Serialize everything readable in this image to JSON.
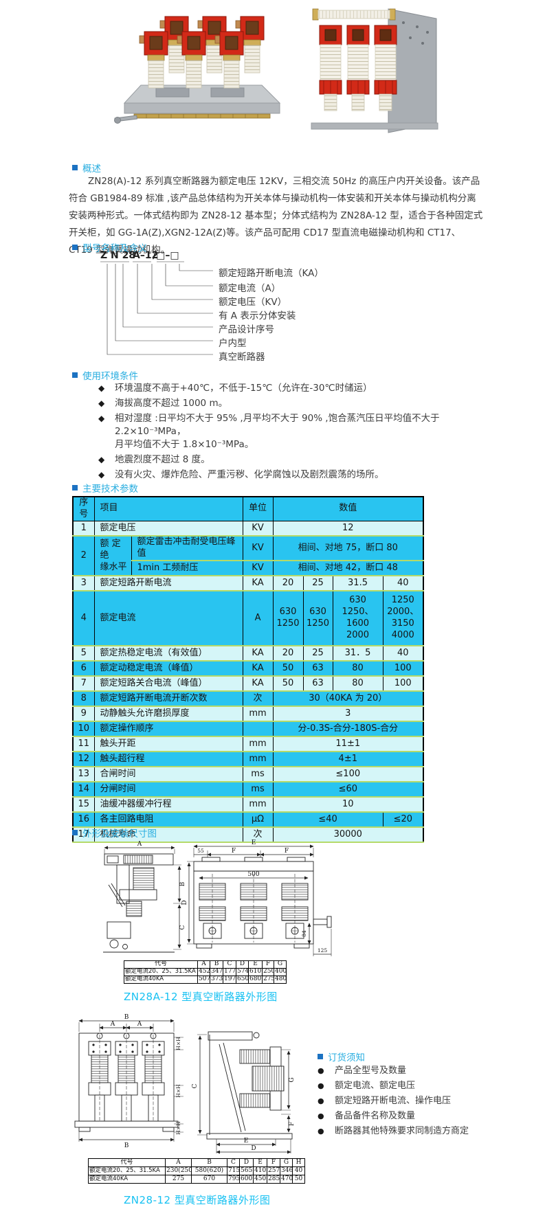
{
  "colors": {
    "section_title": "#2aaee0",
    "bullet_square": "#1c72c2",
    "caption": "#17c1f2",
    "table_bright": "#29c4f0",
    "table_pale": "#d5f6f8",
    "row_separator": "#b5da69",
    "text": "#3c3c3c"
  },
  "overview": {
    "title": "概述",
    "paragraph": "ZN28(A)-12 系列真空断路器为额定电压 12KV，三相交流 50Hz 的高压户内开关设备。该产品符合 GB1984-89 标准 ,该产品总体结构为开关本体与操动机构一体安装和开关本体与操动机构分离安装两种形式。一体式结构即为 ZN28-12 基本型；分体式结构为 ZN28A-12 型，适合于各种固定式开关柜，如 GG-1A(Z),XGN2-12A(Z)等。该产品可配用 CD17 型直流电磁操动机构和 CT17、CT19 型弹簧操动机构。"
  },
  "model": {
    "title": "型号名称及含义",
    "code_parts": [
      "Z N 28",
      "A–12",
      "/□–□"
    ],
    "labels": [
      "额定短路开断电流（KA）",
      "额定电流（A）",
      "额定电压（KV）",
      "有 A 表示分体安装",
      "产品设计序号",
      "户内型",
      "真空断路器"
    ]
  },
  "environment": {
    "title": "使用环境条件",
    "bullet": "◆",
    "items": [
      "环境温度不高于+40℃，不低于-15℃（允许在-30℃时储运）",
      "海拔高度不超过 1000 m。",
      "相对湿度 :日平均不大于 95% ,月平均不大于 90% ,饱合蒸汽压日平均值不大于 2.2×10⁻³MPa，\n月平均值不大于 1.8×10⁻³MPa。",
      "地震烈度不超过 8 度。",
      "没有火灾、爆炸危险、严重污秽、化学腐蚀以及剧烈震荡的场所。"
    ]
  },
  "spec_table": {
    "title": "主要技术参数",
    "rows": [
      {
        "bg": "b",
        "hd": true,
        "cells": [
          [
            "序号"
          ],
          [
            "项目",
            2,
            1,
            "l"
          ],
          [
            "单位"
          ],
          [
            "数值",
            4
          ]
        ]
      },
      {
        "bg": "p",
        "cells": [
          [
            "1"
          ],
          [
            "额定电压",
            2,
            1,
            "l"
          ],
          [
            "KV"
          ],
          [
            "12",
            4
          ]
        ]
      },
      {
        "bg": "b",
        "cells": [
          [
            "2",
            1,
            2
          ],
          [
            "额 定 绝\n缘水平",
            1,
            2,
            "l"
          ],
          [
            "额定雷击冲击耐受电压峰值",
            1,
            1,
            "l"
          ],
          [
            "KV"
          ],
          [
            "相间、对地 75，断口 80",
            4
          ]
        ]
      },
      {
        "bg": "b",
        "cells": [
          [
            "1min 工频耐压",
            1,
            1,
            "l"
          ],
          [
            "KV"
          ],
          [
            "相间、对地 42，断口 48",
            4
          ]
        ]
      },
      {
        "bg": "p",
        "cells": [
          [
            "3"
          ],
          [
            "额定短路开断电流",
            2,
            1,
            "l"
          ],
          [
            "KA"
          ],
          [
            "20"
          ],
          [
            "25"
          ],
          [
            "31.5"
          ],
          [
            "40"
          ]
        ]
      },
      {
        "bg": "b",
        "tall": true,
        "cells": [
          [
            "4"
          ],
          [
            "额定电流",
            2,
            1,
            "l"
          ],
          [
            "A"
          ],
          [
            "630\n1250"
          ],
          [
            "630\n1250"
          ],
          [
            "630\n1250、1600\n2000"
          ],
          [
            "1250\n2000、\n3150\n4000"
          ]
        ]
      },
      {
        "bg": "p",
        "cells": [
          [
            "5"
          ],
          [
            "额定热稳定电流（有效值）",
            2,
            1,
            "l"
          ],
          [
            "KA"
          ],
          [
            "20"
          ],
          [
            "25"
          ],
          [
            "31．5"
          ],
          [
            "40"
          ]
        ]
      },
      {
        "bg": "b",
        "cells": [
          [
            "6"
          ],
          [
            "额定动稳定电流（峰值）",
            2,
            1,
            "l"
          ],
          [
            "KA"
          ],
          [
            "50"
          ],
          [
            "63"
          ],
          [
            "80"
          ],
          [
            "100"
          ]
        ]
      },
      {
        "bg": "p",
        "cells": [
          [
            "7"
          ],
          [
            "额定短路关合电流（峰值）",
            2,
            1,
            "l"
          ],
          [
            "KA"
          ],
          [
            "50"
          ],
          [
            "63"
          ],
          [
            "80"
          ],
          [
            "100"
          ]
        ]
      },
      {
        "bg": "b",
        "cells": [
          [
            "8"
          ],
          [
            "额定短路开断电流开断次数",
            2,
            1,
            "l"
          ],
          [
            "次"
          ],
          [
            "30（40KA 为 20）",
            4
          ]
        ]
      },
      {
        "bg": "p",
        "cells": [
          [
            "9"
          ],
          [
            "动静触头允许磨损厚度",
            2,
            1,
            "l"
          ],
          [
            "mm"
          ],
          [
            "3",
            4
          ]
        ]
      },
      {
        "bg": "b",
        "cells": [
          [
            "10"
          ],
          [
            "额定操作顺序",
            2,
            1,
            "l"
          ],
          [
            ""
          ],
          [
            "分-0.3S-合分-180S-合分",
            4
          ]
        ]
      },
      {
        "bg": "p",
        "cells": [
          [
            "11"
          ],
          [
            "触头开距",
            2,
            1,
            "l"
          ],
          [
            "mm"
          ],
          [
            "11±1",
            4
          ]
        ]
      },
      {
        "bg": "b",
        "cells": [
          [
            "12"
          ],
          [
            "触头超行程",
            2,
            1,
            "l"
          ],
          [
            "mm"
          ],
          [
            "4±1",
            4
          ]
        ]
      },
      {
        "bg": "p",
        "cells": [
          [
            "13"
          ],
          [
            "合闸时间",
            2,
            1,
            "l"
          ],
          [
            "ms"
          ],
          [
            "≤100",
            4
          ]
        ]
      },
      {
        "bg": "b",
        "cells": [
          [
            "14"
          ],
          [
            "分闸时间",
            2,
            1,
            "l"
          ],
          [
            "ms"
          ],
          [
            "≤60",
            4
          ]
        ]
      },
      {
        "bg": "p",
        "cells": [
          [
            "15"
          ],
          [
            "油缓冲器缓冲行程",
            2,
            1,
            "l"
          ],
          [
            "mm"
          ],
          [
            "10",
            4
          ]
        ]
      },
      {
        "bg": "b",
        "cells": [
          [
            "16"
          ],
          [
            "各主回路电阻",
            2,
            1,
            "l"
          ],
          [
            "μΩ"
          ],
          [
            "≤40",
            3
          ],
          [
            "≤20"
          ]
        ]
      },
      {
        "bg": "p",
        "cells": [
          [
            "17"
          ],
          [
            "机械寿命",
            2,
            1,
            "l"
          ],
          [
            "次"
          ],
          [
            "30000",
            4
          ]
        ]
      }
    ]
  },
  "outline_section": {
    "title": "外形及安装尺寸图"
  },
  "dim_table_a": {
    "header": [
      "代号",
      "A",
      "B",
      "C",
      "D",
      "E",
      "F",
      "G"
    ],
    "rows": [
      [
        "额定电流20、25、31.5KA",
        "452",
        "347",
        "177",
        "574",
        "610",
        "250",
        "400"
      ],
      [
        "额定电流40KA",
        "507",
        "373",
        "197",
        "650",
        "680",
        "275",
        "480"
      ]
    ],
    "caption": "ZN28A-12 型真空断路器外形图"
  },
  "dim_table_b": {
    "header": [
      "代号",
      "A",
      "B",
      "C",
      "D",
      "E",
      "F",
      "G",
      "H"
    ],
    "rows": [
      [
        "额定电流20、25、31.5KA",
        "230(250)",
        "580(620)",
        "715",
        "565",
        "410",
        "257",
        "346",
        "40"
      ],
      [
        "额定电流40KA",
        "275",
        "670",
        "795",
        "600",
        "450",
        "285",
        "470",
        "50"
      ]
    ],
    "caption": "ZN28-12 型真空断路器外形图"
  },
  "ordering": {
    "title": "订货须知",
    "bullet": "●",
    "items": [
      "产品全型号及数量",
      "额定电流、额定电压",
      "额定短路开断电流、操作电压",
      "备品备件名称及数量",
      "断路器其他特殊要求同制造方商定"
    ]
  },
  "drawings": {
    "d1": {
      "A": "A",
      "B": "B",
      "C": "C",
      "E": "E",
      "n55": "55",
      "F1": "F",
      "F2": "F",
      "n500": "500",
      "D": "D",
      "n84": "84",
      "n125": "125"
    },
    "d2": {
      "B_top": "B",
      "A1": "A",
      "A2": "A",
      "H1": "H×H",
      "H2": "H×H",
      "H3": "H×H",
      "B_bot": "B",
      "C": "C",
      "G": "G",
      "F": "F",
      "E": "E",
      "D": "D"
    }
  }
}
